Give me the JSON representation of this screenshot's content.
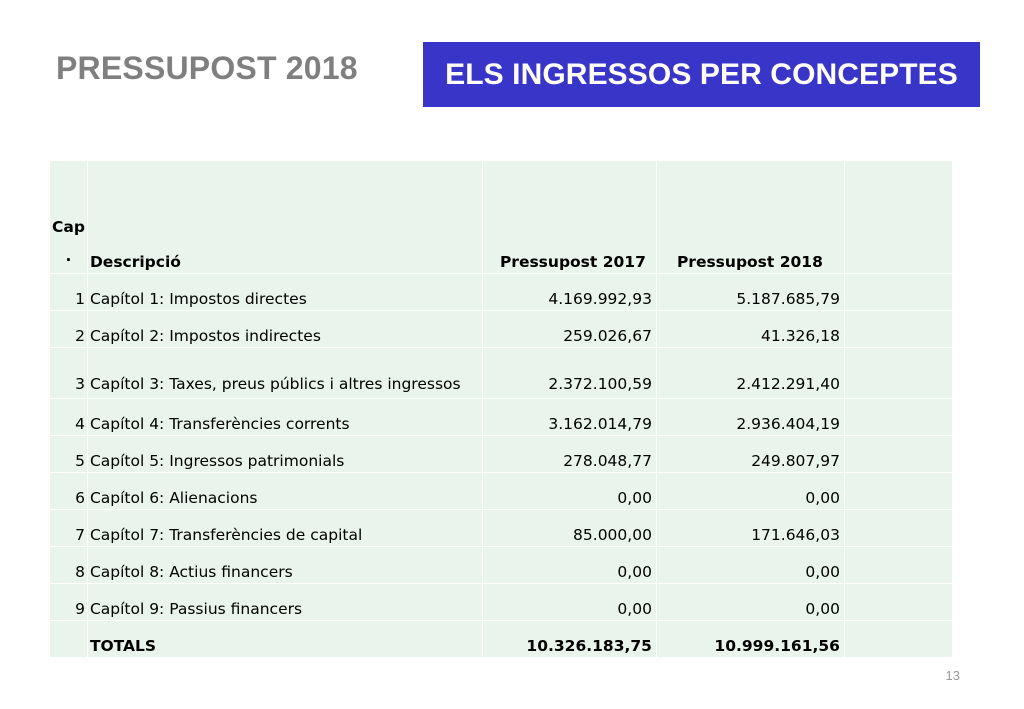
{
  "header": {
    "title": "PRESSUPOST 2018",
    "section_title": "ELS INGRESSOS PER CONCEPTES"
  },
  "table": {
    "columns": {
      "cap": "Cap\n.",
      "description": "Descripció",
      "budget_2017": "Pressupost 2017",
      "budget_2018": "Pressupost 2018"
    },
    "rows": [
      {
        "cap": "1",
        "description": "Capítol 1: Impostos directes",
        "budget_2017": "4.169.992,93",
        "budget_2018": "5.187.685,79"
      },
      {
        "cap": "2",
        "description": "Capítol 2: Impostos indirectes",
        "budget_2017": "259.026,67",
        "budget_2018": "41.326,18"
      },
      {
        "cap": "3",
        "description": "Capítol 3: Taxes, preus públics i altres ingressos",
        "budget_2017": "2.372.100,59",
        "budget_2018": "2.412.291,40"
      },
      {
        "cap": "4",
        "description": "Capítol 4: Transferències corrents",
        "budget_2017": "3.162.014,79",
        "budget_2018": "2.936.404,19"
      },
      {
        "cap": "5",
        "description": "Capítol 5: Ingressos patrimonials",
        "budget_2017": "278.048,77",
        "budget_2018": "249.807,97"
      },
      {
        "cap": "6",
        "description": "Capítol 6: Alienacions",
        "budget_2017": "0,00",
        "budget_2018": "0,00"
      },
      {
        "cap": "7",
        "description": "Capítol 7: Transferències de capital",
        "budget_2017": "85.000,00",
        "budget_2018": "171.646,03"
      },
      {
        "cap": "8",
        "description": "Capítol 8: Actius financers",
        "budget_2017": "0,00",
        "budget_2018": "0,00"
      },
      {
        "cap": "9",
        "description": "Capítol 9: Passius financers",
        "budget_2017": "0,00",
        "budget_2018": "0,00"
      }
    ],
    "totals": {
      "label": "TOTALS",
      "budget_2017": "10.326.183,75",
      "budget_2018": "10.999.161,56"
    }
  },
  "footer": {
    "page_number": "13"
  },
  "colors": {
    "title_gray": "#7f7f7f",
    "banner_blue": "#3a35c9",
    "cell_green": "#e9f4ec"
  }
}
